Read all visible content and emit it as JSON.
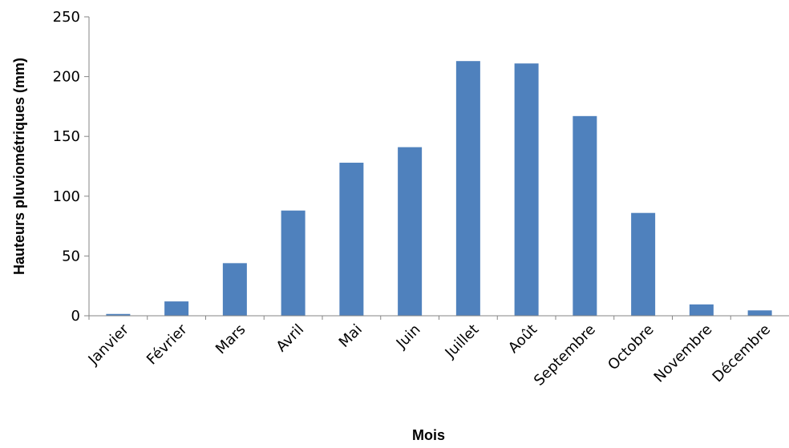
{
  "chart_data": {
    "type": "bar",
    "title": "",
    "xlabel": "Mois",
    "ylabel": "Hauteurs pluviométriques (mm)",
    "categories": [
      "Janvier",
      "Février",
      "Mars",
      "Avril",
      "Mai",
      "Juin",
      "Juillet",
      "Août",
      "Septembre",
      "Octobre",
      "Novembre",
      "Décembre"
    ],
    "values": [
      1.5,
      12,
      44,
      88,
      128,
      141,
      213,
      211,
      167,
      86,
      9.5,
      4.5
    ],
    "ylim": [
      0,
      250
    ],
    "yticks": [
      0,
      50,
      100,
      150,
      200,
      250
    ],
    "bar_color": "#4F81BD",
    "grid": false,
    "legend": "none"
  }
}
